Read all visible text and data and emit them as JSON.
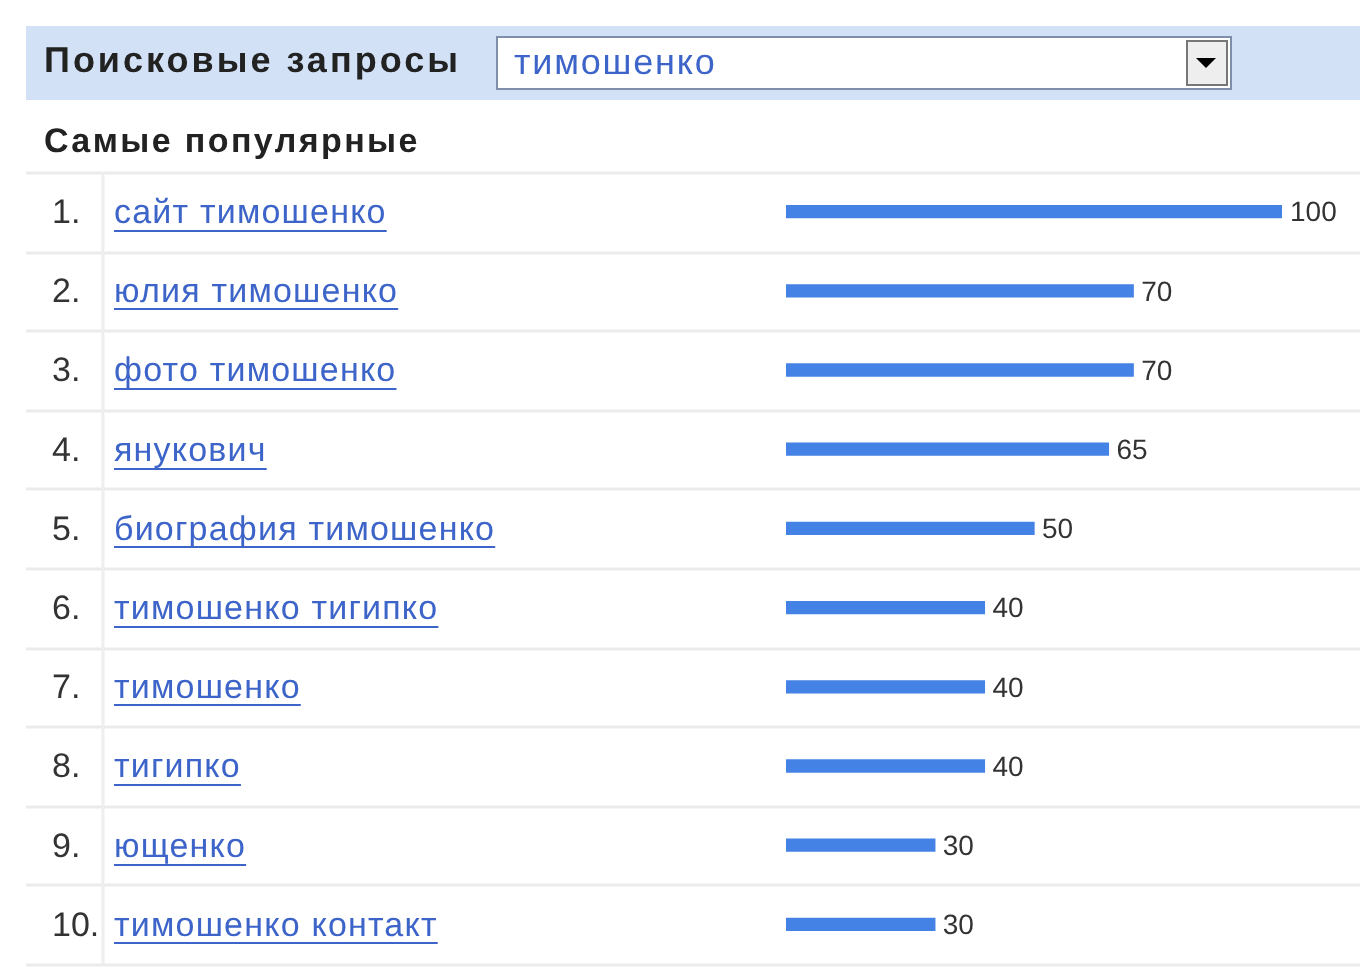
{
  "chart_data": {
    "type": "bar",
    "orientation": "horizontal",
    "title": "Поисковые запросы",
    "subtitle": "Самые популярные",
    "annotations": [
      "тимошенко"
    ],
    "categories": [
      "1. сайт тимошенко",
      "2. юлия тимошенко",
      "3. фото тимошенко",
      "4. янукович",
      "5. биография тимошенко",
      "6. тимошенко тигипко",
      "7. тимошенко",
      "8. тигипко",
      "9. ющенко",
      "10. тимошенко контакт"
    ],
    "values": [
      100,
      70,
      70,
      65,
      50,
      40,
      40,
      40,
      30,
      30
    ],
    "color": "#4582e6",
    "data_labels": true,
    "grid": "y"
  }
}
